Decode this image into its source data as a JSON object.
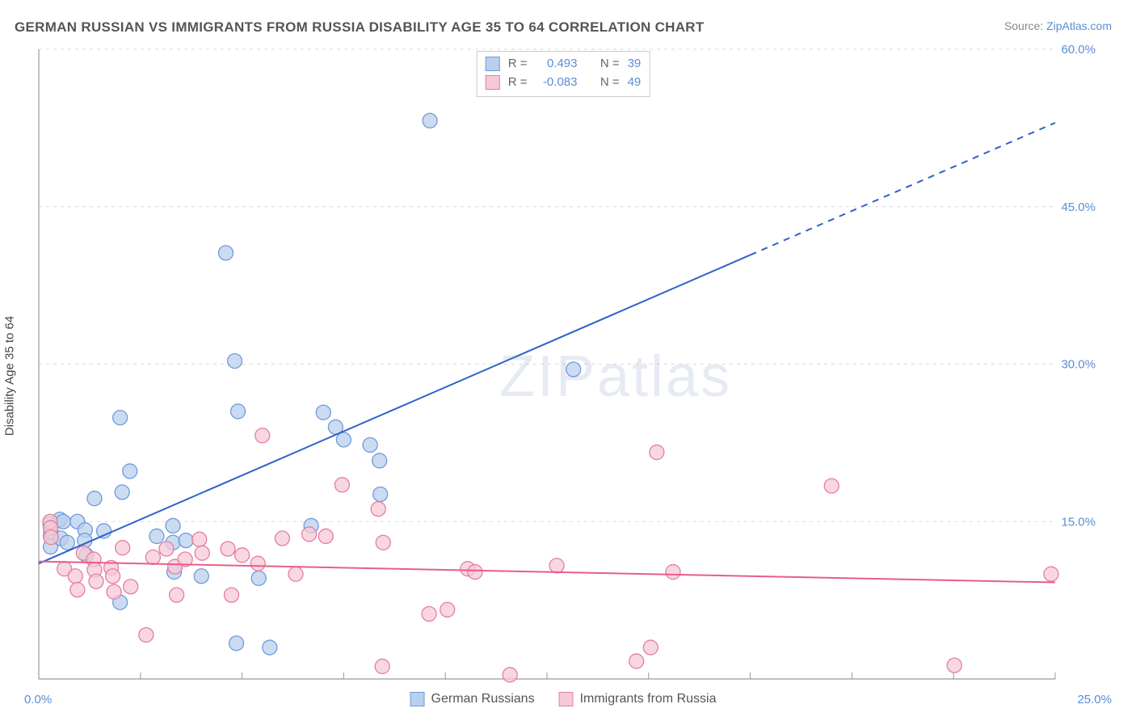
{
  "title": "GERMAN RUSSIAN VS IMMIGRANTS FROM RUSSIA DISABILITY AGE 35 TO 64 CORRELATION CHART",
  "source_label": "Source:",
  "source_name": "ZipAtlas.com",
  "ylabel": "Disability Age 35 to 64",
  "watermark": "ZIPatlas",
  "chart": {
    "type": "scatter-with-regression",
    "background_color": "#ffffff",
    "grid_color": "#d9d9d9",
    "axis_color": "#999999",
    "x": {
      "min": 0.0,
      "max": 25.0,
      "ticks_minor_step": 2.5,
      "origin_label": "0.0%",
      "max_label": "25.0%"
    },
    "y": {
      "min": 0.0,
      "max": 60.0,
      "ticks": [
        15.0,
        30.0,
        45.0,
        60.0
      ],
      "tick_labels": [
        "15.0%",
        "30.0%",
        "45.0%",
        "60.0%"
      ],
      "label_color": "#5b8dd6"
    },
    "series": [
      {
        "name": "German Russians",
        "marker_fill": "#b9cfee",
        "marker_stroke": "#6f9bd8",
        "marker_opacity": 0.75,
        "marker_radius": 9,
        "line_color": "#2f62c9",
        "line_width": 2,
        "R": "0.493",
        "N": "39",
        "regression": {
          "y_at_xmin": 11.0,
          "y_at_xmax": 53.0,
          "solid_until_x": 17.5
        },
        "points": [
          [
            0.28,
            14.8
          ],
          [
            0.29,
            13.6
          ],
          [
            0.29,
            12.6
          ],
          [
            0.3,
            14.0
          ],
          [
            0.52,
            15.2
          ],
          [
            0.54,
            13.4
          ],
          [
            0.6,
            15.0
          ],
          [
            0.7,
            13.0
          ],
          [
            0.95,
            15.0
          ],
          [
            1.14,
            14.2
          ],
          [
            1.13,
            13.2
          ],
          [
            1.17,
            11.8
          ],
          [
            1.37,
            17.2
          ],
          [
            1.6,
            14.1
          ],
          [
            2.0,
            24.9
          ],
          [
            2.05,
            17.8
          ],
          [
            2.0,
            7.3
          ],
          [
            2.24,
            19.8
          ],
          [
            2.9,
            13.6
          ],
          [
            3.3,
            14.6
          ],
          [
            3.3,
            13.0
          ],
          [
            3.33,
            10.2
          ],
          [
            3.62,
            13.2
          ],
          [
            4.0,
            9.8
          ],
          [
            4.6,
            40.6
          ],
          [
            4.82,
            30.3
          ],
          [
            4.9,
            25.5
          ],
          [
            4.86,
            3.4
          ],
          [
            5.41,
            9.6
          ],
          [
            5.68,
            3.0
          ],
          [
            6.7,
            14.6
          ],
          [
            7.0,
            25.4
          ],
          [
            7.3,
            24.0
          ],
          [
            7.5,
            22.8
          ],
          [
            8.15,
            22.3
          ],
          [
            8.4,
            17.6
          ],
          [
            8.38,
            20.8
          ],
          [
            9.62,
            53.2
          ],
          [
            13.15,
            29.5
          ]
        ]
      },
      {
        "name": "Immigrants from Russia",
        "marker_fill": "#f6c9d6",
        "marker_stroke": "#e47ea0",
        "marker_opacity": 0.75,
        "marker_radius": 9,
        "line_color": "#e85d8a",
        "line_width": 2,
        "R": "-0.083",
        "N": "49",
        "regression": {
          "y_at_xmin": 11.2,
          "y_at_xmax": 9.2,
          "solid_until_x": 25.0
        },
        "points": [
          [
            0.28,
            15.0
          ],
          [
            0.29,
            14.4
          ],
          [
            0.3,
            13.5
          ],
          [
            0.63,
            10.5
          ],
          [
            0.9,
            9.8
          ],
          [
            0.95,
            8.5
          ],
          [
            1.1,
            12.0
          ],
          [
            1.35,
            11.4
          ],
          [
            1.37,
            10.4
          ],
          [
            1.41,
            9.3
          ],
          [
            1.78,
            10.6
          ],
          [
            1.82,
            9.8
          ],
          [
            1.85,
            8.3
          ],
          [
            2.06,
            12.5
          ],
          [
            2.26,
            8.8
          ],
          [
            2.64,
            4.2
          ],
          [
            2.81,
            11.6
          ],
          [
            3.14,
            12.4
          ],
          [
            3.35,
            10.7
          ],
          [
            3.39,
            8.0
          ],
          [
            3.6,
            11.4
          ],
          [
            3.95,
            13.3
          ],
          [
            4.02,
            12.0
          ],
          [
            4.65,
            12.4
          ],
          [
            4.74,
            8.0
          ],
          [
            5.0,
            11.8
          ],
          [
            5.39,
            11.0
          ],
          [
            5.5,
            23.2
          ],
          [
            5.99,
            13.4
          ],
          [
            6.32,
            10.0
          ],
          [
            6.65,
            13.8
          ],
          [
            7.06,
            13.6
          ],
          [
            7.46,
            18.5
          ],
          [
            8.35,
            16.2
          ],
          [
            8.45,
            1.2
          ],
          [
            8.47,
            13.0
          ],
          [
            9.6,
            6.2
          ],
          [
            10.05,
            6.6
          ],
          [
            10.55,
            10.5
          ],
          [
            10.73,
            10.2
          ],
          [
            11.59,
            0.4
          ],
          [
            12.74,
            10.8
          ],
          [
            14.7,
            1.7
          ],
          [
            15.05,
            3.0
          ],
          [
            15.2,
            21.6
          ],
          [
            15.6,
            10.2
          ],
          [
            19.5,
            18.4
          ],
          [
            22.52,
            1.3
          ],
          [
            24.9,
            10.0
          ]
        ]
      }
    ],
    "legend_bottom": [
      {
        "label": "German Russians",
        "fill": "#b9cfee",
        "stroke": "#6f9bd8"
      },
      {
        "label": "Immigrants from Russia",
        "fill": "#f6c9d6",
        "stroke": "#e47ea0"
      }
    ],
    "stats_label_R": "R =",
    "stats_label_N": "N ="
  }
}
